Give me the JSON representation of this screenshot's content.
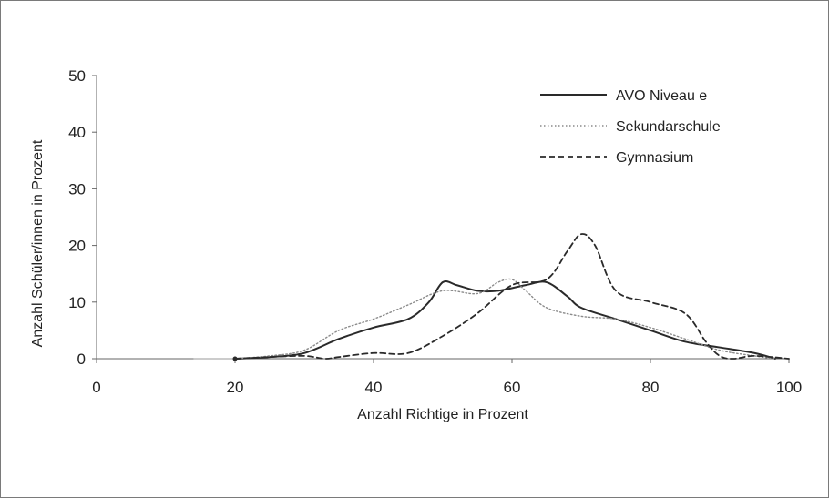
{
  "chart_data": {
    "type": "line",
    "title": "",
    "xlabel": "Anzahl Richtige in Prozent",
    "ylabel": "Anzahl Schüler/innen in Prozent",
    "xlim": [
      0,
      100
    ],
    "ylim": [
      0,
      50
    ],
    "xticks": [
      0,
      20,
      40,
      60,
      80,
      100
    ],
    "yticks": [
      0,
      10,
      20,
      30,
      40,
      50
    ],
    "grid": false,
    "legend_position": "top-right",
    "series": [
      {
        "name": "AVO Niveau e",
        "style": "solid",
        "color": "#2a2a2a",
        "x": [
          20,
          25,
          30,
          35,
          40,
          45,
          48,
          50,
          52,
          55,
          58,
          62,
          65,
          68,
          70,
          75,
          80,
          85,
          90,
          95,
          98
        ],
        "y": [
          0,
          0.3,
          1,
          3.5,
          5.5,
          7,
          10,
          13.5,
          13,
          12,
          12,
          13,
          13.5,
          11,
          9,
          7,
          5,
          3,
          2,
          1,
          0
        ]
      },
      {
        "name": "Sekundarschule",
        "style": "dotted",
        "color": "#8a8a8a",
        "x": [
          20,
          25,
          30,
          35,
          40,
          45,
          50,
          55,
          58,
          60,
          62,
          65,
          70,
          75,
          80,
          85,
          90,
          95,
          98
        ],
        "y": [
          0,
          0.5,
          1.5,
          5,
          7,
          9.5,
          12,
          11.5,
          13.5,
          14,
          12,
          9,
          7.5,
          7,
          5.5,
          3.5,
          1.5,
          0.5,
          0
        ]
      },
      {
        "name": "Gymnasium",
        "style": "dashed",
        "color": "#2a2a2a",
        "x": [
          20,
          25,
          30,
          33,
          35,
          40,
          45,
          50,
          55,
          60,
          65,
          68,
          70,
          72,
          75,
          80,
          85,
          88,
          90,
          92,
          95,
          100
        ],
        "y": [
          0,
          0.3,
          0.5,
          0,
          0.3,
          1,
          1,
          4,
          8,
          13,
          14,
          19,
          22,
          20,
          12,
          10,
          8,
          3,
          0.5,
          0,
          0.5,
          0
        ]
      }
    ]
  }
}
